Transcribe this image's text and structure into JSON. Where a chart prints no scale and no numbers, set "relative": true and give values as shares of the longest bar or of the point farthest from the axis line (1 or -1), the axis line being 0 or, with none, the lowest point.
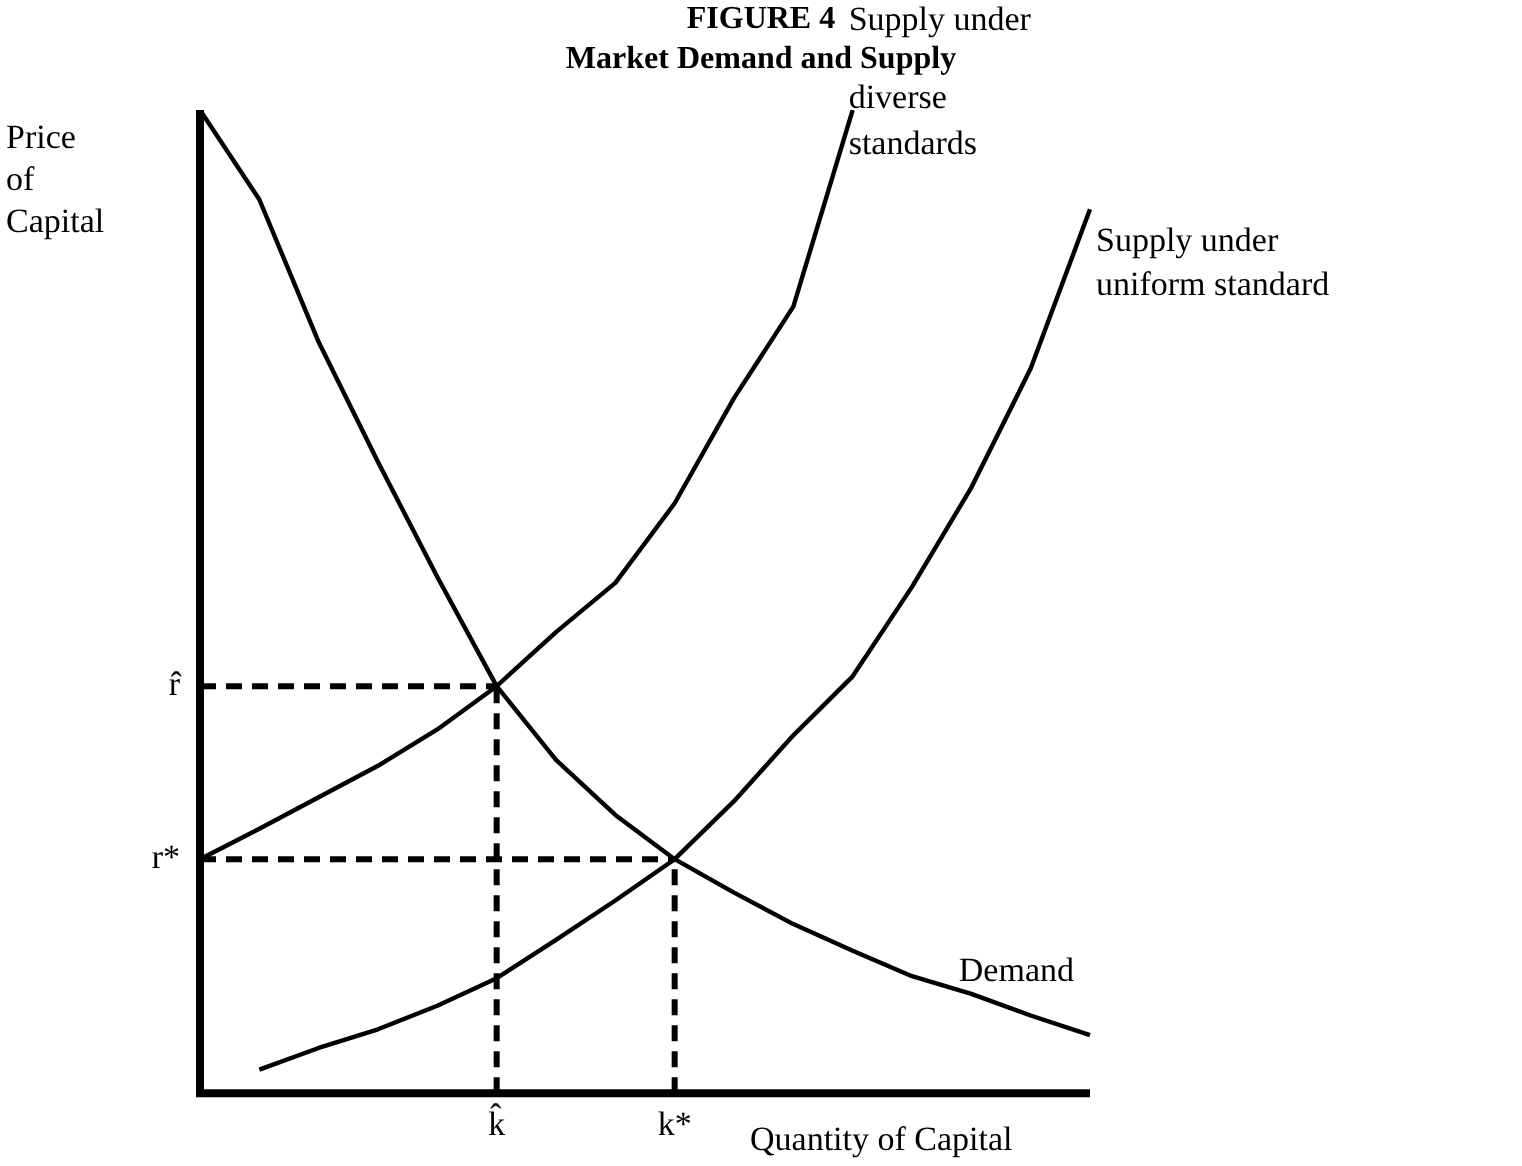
{
  "chart_data": {
    "type": "line",
    "title": "FIGURE 4",
    "subtitle": "Market Demand and Supply",
    "xlabel": "Quantity of Capital",
    "ylabel": "Price\nof\nCapital",
    "relative": true,
    "categories": [
      null,
      null,
      null,
      null,
      null,
      "k̂",
      null,
      null,
      "k*",
      null,
      null,
      null,
      null,
      null,
      null,
      null
    ],
    "series": [
      {
        "name": "Demand",
        "color": "#000000",
        "values": [
          1.0,
          0.909,
          0.764,
          0.642,
          0.525,
          0.414,
          0.339,
          0.283,
          0.238,
          0.204,
          0.172,
          0.145,
          0.119,
          0.101,
          0.079,
          0.059
        ]
      },
      {
        "name": "Supply under\ndiverse\nstandards",
        "color": "#000000",
        "values": [
          0.238,
          0.269,
          0.301,
          0.333,
          0.37,
          0.414,
          0.469,
          0.519,
          0.6,
          0.707,
          0.8,
          1.0,
          null,
          null,
          null,
          null
        ]
      },
      {
        "name": "Supply under\nuniform standard",
        "color": "#000000",
        "values": [
          null,
          0.024,
          0.046,
          0.065,
          0.089,
          0.117,
          0.156,
          0.196,
          0.238,
          0.297,
          0.364,
          0.424,
          0.515,
          0.616,
          0.737,
          0.899
        ]
      }
    ],
    "ref_lines": [
      {
        "axis": "y",
        "value": 0.414,
        "label": "r̂",
        "line_style": "dashed",
        "color": "#000000"
      },
      {
        "axis": "x",
        "value": "k̂",
        "line_style": "dashed",
        "color": "#000000"
      },
      {
        "axis": "y",
        "value": 0.238,
        "label": "r*",
        "line_style": "dashed",
        "color": "#000000"
      },
      {
        "axis": "x",
        "value": "k*",
        "line_style": "dashed",
        "color": "#000000"
      }
    ],
    "marker": "none",
    "legend": false
  }
}
